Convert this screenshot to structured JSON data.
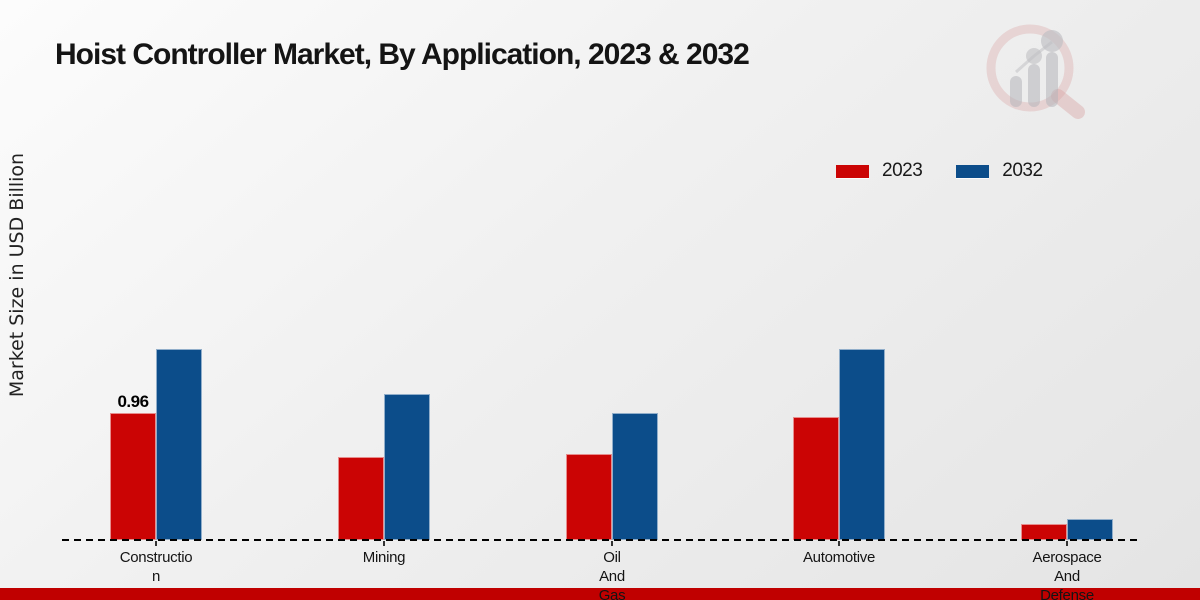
{
  "title": "Hoist Controller Market, By Application, 2023 & 2032",
  "y_axis_label": "Market Size in USD Billion",
  "legend": {
    "items": [
      {
        "label": "2023",
        "color": "#cb0404"
      },
      {
        "label": "2032",
        "color": "#0c4d8a"
      }
    ]
  },
  "footer": {
    "bar_color": "#c00000"
  },
  "logo_icon": "magnifier-bar-chart-watermark",
  "colors": {
    "series_2023": "#cb0404",
    "series_2032": "#0c4d8a",
    "baseline": "#000000",
    "text": "#1a1a1a"
  },
  "chart_data": {
    "type": "bar",
    "title": "Hoist Controller Market, By Application, 2023 & 2032",
    "xlabel": "",
    "ylabel": "Market Size in USD Billion",
    "categories": [
      "Construction",
      "Mining",
      "Oil And Gas",
      "Automotive",
      "Aerospace And Defense"
    ],
    "category_display": [
      "Constructio\nn",
      "Mining",
      "Oil\nAnd\nGas",
      "Automotive",
      "Aerospace\nAnd\nDefense"
    ],
    "series": [
      {
        "name": "2023",
        "color": "#cb0404",
        "values": [
          0.96,
          0.63,
          0.65,
          0.93,
          0.12
        ]
      },
      {
        "name": "2032",
        "color": "#0c4d8a",
        "values": [
          1.44,
          1.1,
          0.96,
          1.44,
          0.16
        ]
      }
    ],
    "bar_labels": [
      {
        "category_index": 0,
        "series_index": 0,
        "text": "0.96"
      }
    ],
    "ylim": [
      0,
      1.7
    ],
    "grid": false,
    "y_axis_ticks_visible": false,
    "legend_position": "top-right",
    "baseline_style": "dashed"
  }
}
